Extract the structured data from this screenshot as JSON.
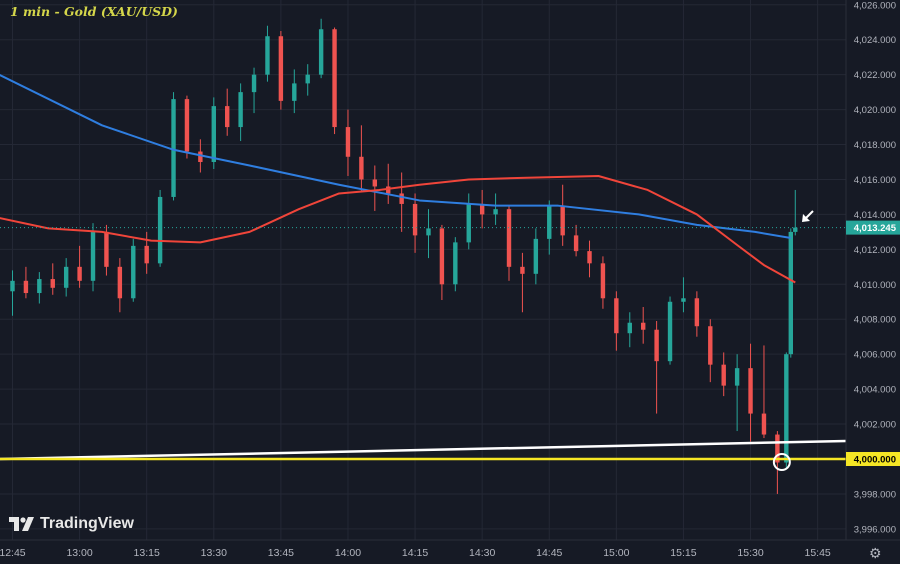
{
  "title": "1 min - Gold (XAU/USD)",
  "logo_text": "TradingView",
  "settings_icon": "gear-icon",
  "colors": {
    "background": "#161a25",
    "grid": "#242835",
    "up": "#26a69a",
    "down": "#ef5350",
    "ma_red": "#f0453a",
    "ma_blue": "#2f7ee0",
    "trendline": "#ffffff",
    "support": "#f5e625",
    "price_tag": "#26a69a",
    "axis_text": "#b2b5be"
  },
  "chart_data": {
    "type": "candlestick",
    "title": "1 min - Gold (XAU/USD)",
    "ylim": [
      3995.5,
      4026.2
    ],
    "grid": true,
    "y_ticks": [
      "4,026.000",
      "4,024.000",
      "4,022.000",
      "4,020.000",
      "4,018.000",
      "4,016.000",
      "4,014.000",
      "4,012.000",
      "4,010.000",
      "4,008.000",
      "4,006.000",
      "4,004.000",
      "4,002.000",
      "4,000.000",
      "3,998.000",
      "3,996.000"
    ],
    "y_tick_values": [
      4026,
      4024,
      4022,
      4020,
      4018,
      4016,
      4014,
      4012,
      4010,
      4008,
      4006,
      4004,
      4002,
      4000,
      3998,
      3996
    ],
    "x_ticks": [
      "12:45",
      "13:00",
      "13:15",
      "13:30",
      "13:45",
      "14:00",
      "14:15",
      "14:30",
      "14:45",
      "15:00",
      "15:15",
      "15:30",
      "15:45"
    ],
    "last_price": 4013.245,
    "last_price_label": "4,013.245",
    "support_level": 4000,
    "support_label": "4,000.000",
    "trendline": [
      [
        "12:42",
        4000.0
      ],
      [
        "15:49",
        4001.03
      ]
    ],
    "marker_circle": [
      "15:37",
      4000.0
    ],
    "candles": [
      [
        "12:45",
        4009.6,
        4010.8,
        4008.2,
        4010.2
      ],
      [
        "12:48",
        4010.2,
        4011,
        4009.2,
        4009.5
      ],
      [
        "12:51",
        4009.5,
        4010.7,
        4008.9,
        4010.3
      ],
      [
        "12:54",
        4010.3,
        4011.2,
        4009.4,
        4009.8
      ],
      [
        "12:57",
        4009.8,
        4011.5,
        4009.3,
        4011
      ],
      [
        "13:00",
        4011,
        4012.2,
        4009.8,
        4010.2
      ],
      [
        "13:03",
        4010.2,
        4013.5,
        4009.6,
        4013
      ],
      [
        "13:06",
        4013,
        4013.4,
        4010.5,
        4011
      ],
      [
        "13:09",
        4011,
        4011.5,
        4008.4,
        4009.2
      ],
      [
        "13:12",
        4009.2,
        4012.6,
        4009,
        4012.2
      ],
      [
        "13:15",
        4012.2,
        4013,
        4010.6,
        4011.2
      ],
      [
        "13:18",
        4011.2,
        4015.4,
        4011,
        4015
      ],
      [
        "13:21",
        4015,
        4021,
        4014.8,
        4020.6
      ],
      [
        "13:24",
        4020.6,
        4020.8,
        4017.2,
        4017.6
      ],
      [
        "13:27",
        4017.6,
        4018.3,
        4016.4,
        4017
      ],
      [
        "13:30",
        4017,
        4020.7,
        4016.6,
        4020.2
      ],
      [
        "13:33",
        4020.2,
        4021.2,
        4018.5,
        4019
      ],
      [
        "13:36",
        4019,
        4021.5,
        4018.2,
        4021
      ],
      [
        "13:39",
        4021,
        4022.4,
        4019.8,
        4022
      ],
      [
        "13:42",
        4022,
        4024.8,
        4021.6,
        4024.2
      ],
      [
        "13:45",
        4024.2,
        4024.5,
        4020,
        4020.5
      ],
      [
        "13:48",
        4020.5,
        4022.3,
        4019.8,
        4021.5
      ],
      [
        "13:51",
        4021.5,
        4022.6,
        4020.8,
        4022
      ],
      [
        "13:54",
        4022,
        4025.2,
        4021.8,
        4024.6
      ],
      [
        "13:57",
        4024.6,
        4024.7,
        4018.6,
        4019
      ],
      [
        "14:00",
        4019,
        4020,
        4016.2,
        4017.3
      ],
      [
        "14:03",
        4017.3,
        4019.1,
        4015.3,
        4016
      ],
      [
        "14:06",
        4016,
        4016.8,
        4014.2,
        4015.6
      ],
      [
        "14:09",
        4015.6,
        4016.9,
        4014.6,
        4015.2
      ],
      [
        "14:12",
        4015.2,
        4016.4,
        4013,
        4014.6
      ],
      [
        "14:15",
        4014.6,
        4015.2,
        4011.8,
        4012.8
      ],
      [
        "14:18",
        4012.8,
        4014.3,
        4011.5,
        4013.2
      ],
      [
        "14:21",
        4013.2,
        4013.4,
        4009.1,
        4010
      ],
      [
        "14:24",
        4010,
        4012.7,
        4009.6,
        4012.4
      ],
      [
        "14:27",
        4012.4,
        4015.2,
        4012,
        4014.6
      ],
      [
        "14:30",
        4014.6,
        4015.4,
        4013.2,
        4014
      ],
      [
        "14:33",
        4014,
        4015.2,
        4013.4,
        4014.3
      ],
      [
        "14:36",
        4014.3,
        4014.5,
        4010.2,
        4011
      ],
      [
        "14:39",
        4011,
        4011.8,
        4008.4,
        4010.6
      ],
      [
        "14:42",
        4010.6,
        4013.2,
        4010,
        4012.6
      ],
      [
        "14:45",
        4012.6,
        4014.8,
        4011.7,
        4014.5
      ],
      [
        "14:48",
        4014.5,
        4015.7,
        4012.2,
        4012.8
      ],
      [
        "14:51",
        4012.8,
        4013.4,
        4011.6,
        4011.9
      ],
      [
        "14:54",
        4011.9,
        4012.5,
        4010.4,
        4011.2
      ],
      [
        "14:57",
        4011.2,
        4011.6,
        4008.6,
        4009.2
      ],
      [
        "15:00",
        4009.2,
        4009.6,
        4006.2,
        4007.2
      ],
      [
        "15:03",
        4007.2,
        4008.4,
        4006.4,
        4007.8
      ],
      [
        "15:06",
        4007.8,
        4008.7,
        4006.6,
        4007.4
      ],
      [
        "15:09",
        4007.4,
        4007.9,
        4002.6,
        4005.6
      ],
      [
        "15:12",
        4005.6,
        4009.3,
        4005.4,
        4009
      ],
      [
        "15:15",
        4009,
        4010.4,
        4008.4,
        4009.2
      ],
      [
        "15:18",
        4009.2,
        4009.6,
        4007,
        4007.6
      ],
      [
        "15:21",
        4007.6,
        4008,
        4004.4,
        4005.4
      ],
      [
        "15:24",
        4005.4,
        4006.1,
        4003.6,
        4004.2
      ],
      [
        "15:27",
        4004.2,
        4006,
        4001.6,
        4005.2
      ],
      [
        "15:30",
        4005.2,
        4006.6,
        4001,
        4002.6
      ],
      [
        "15:33",
        4002.6,
        4006.5,
        4001.2,
        4001.4
      ],
      [
        "15:36",
        4001.4,
        4001.6,
        3998,
        3999.8
      ],
      [
        "15:38",
        3999.8,
        4006.1,
        3999.4,
        4006
      ],
      [
        "15:39",
        4006,
        4013.2,
        4005.8,
        4013
      ],
      [
        "15:40",
        4013,
        4015.4,
        4012.8,
        4013.245
      ]
    ],
    "ma_red": [
      [
        "12:42",
        4013.8
      ],
      [
        "12:53",
        4013.2
      ],
      [
        "13:05",
        4013
      ],
      [
        "13:16",
        4012.5
      ],
      [
        "13:27",
        4012.4
      ],
      [
        "13:38",
        4013
      ],
      [
        "13:49",
        4014.3
      ],
      [
        "13:58",
        4015.2
      ],
      [
        "14:07",
        4015.4
      ],
      [
        "14:16",
        4015.7
      ],
      [
        "14:27",
        4016
      ],
      [
        "14:40",
        4016.1
      ],
      [
        "14:56",
        4016.2
      ],
      [
        "15:07",
        4015.4
      ],
      [
        "15:18",
        4014
      ],
      [
        "15:27",
        4012.25
      ],
      [
        "15:33",
        4011.1
      ],
      [
        "15:40",
        4010.1
      ]
    ],
    "ma_blue": [
      [
        "12:42",
        4022
      ],
      [
        "13:05",
        4019.1
      ],
      [
        "13:21",
        4017.7
      ],
      [
        "13:38",
        4016.8
      ],
      [
        "13:58",
        4015.7
      ],
      [
        "14:16",
        4014.8
      ],
      [
        "14:33",
        4014.5
      ],
      [
        "14:47",
        4014.5
      ],
      [
        "15:05",
        4014
      ],
      [
        "15:18",
        4013.4
      ],
      [
        "15:31",
        4013
      ],
      [
        "15:39",
        4012.65
      ]
    ]
  }
}
